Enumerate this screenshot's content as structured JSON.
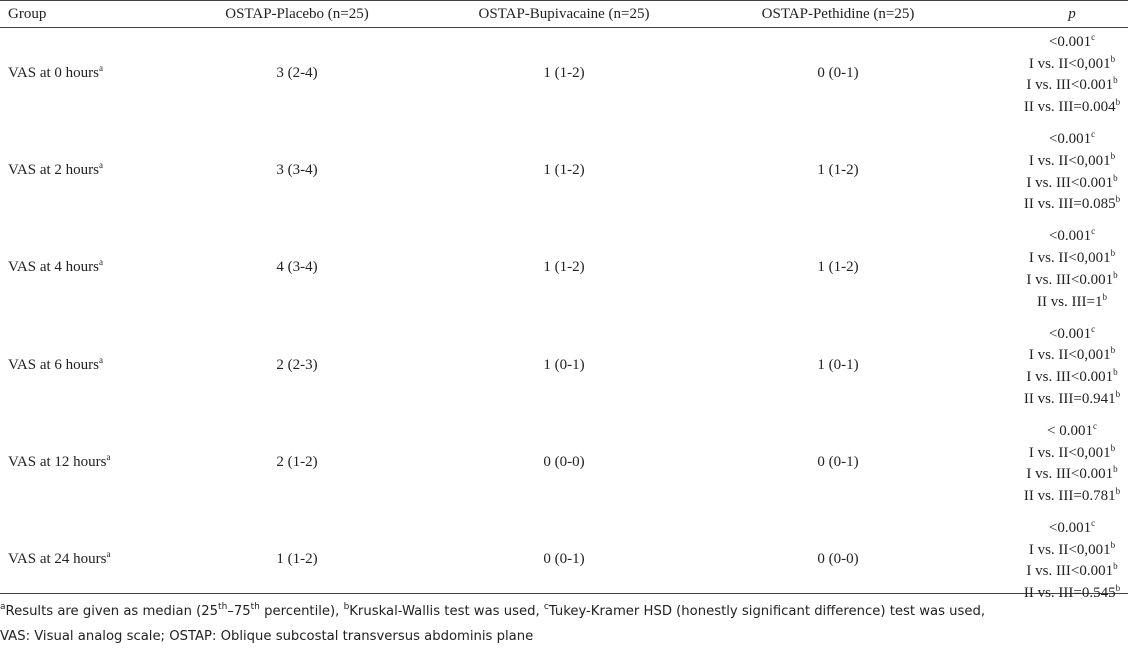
{
  "table": {
    "header": [
      "Group",
      "OSTAP-Placebo (n=25)",
      "OSTAP-Bupivacaine (n=25)",
      "OSTAP-Pethidine (n=25)",
      "p"
    ],
    "rows": [
      {
        "label": [
          {
            "text": "VAS at 0 hours"
          },
          {
            "text": "a",
            "sup": true
          }
        ],
        "values": [
          "3 (2-4)",
          "1 (1-2)",
          "0 (0-1)"
        ],
        "p": [
          [
            {
              "text": "<0.001"
            },
            {
              "text": "c",
              "sup": true
            }
          ],
          [
            {
              "text": "I vs. II<0,001"
            },
            {
              "text": "b",
              "sup": true
            }
          ],
          [
            {
              "text": "I vs. III<0.001"
            },
            {
              "text": "b",
              "sup": true
            }
          ],
          [
            {
              "text": "II vs. III=0.004"
            },
            {
              "text": "b",
              "sup": true
            }
          ]
        ]
      },
      {
        "label": [
          {
            "text": "VAS at 2 hours"
          },
          {
            "text": "a",
            "sup": true
          }
        ],
        "values": [
          "3 (3-4)",
          "1 (1-2)",
          "1 (1-2)"
        ],
        "p": [
          [
            {
              "text": "<0.001"
            },
            {
              "text": "c",
              "sup": true
            }
          ],
          [
            {
              "text": "I vs. II<0,001"
            },
            {
              "text": "b",
              "sup": true
            }
          ],
          [
            {
              "text": "I vs. III<0.001"
            },
            {
              "text": "b",
              "sup": true
            }
          ],
          [
            {
              "text": "II vs. III=0.085"
            },
            {
              "text": "b",
              "sup": true
            }
          ]
        ]
      },
      {
        "label": [
          {
            "text": "VAS at 4 hours"
          },
          {
            "text": "a",
            "sup": true
          }
        ],
        "values": [
          "4 (3-4)",
          "1 (1-2)",
          "1 (1-2)"
        ],
        "p": [
          [
            {
              "text": "<0.001"
            },
            {
              "text": "c",
              "sup": true
            }
          ],
          [
            {
              "text": "I vs. II<0,001"
            },
            {
              "text": "b",
              "sup": true
            }
          ],
          [
            {
              "text": "I vs. III<0.001"
            },
            {
              "text": "b",
              "sup": true
            }
          ],
          [
            {
              "text": "II vs. III=1"
            },
            {
              "text": "b",
              "sup": true
            }
          ]
        ]
      },
      {
        "label": [
          {
            "text": "VAS at 6 hours"
          },
          {
            "text": "a",
            "sup": true
          }
        ],
        "values": [
          "2 (2-3)",
          "1 (0-1)",
          "1 (0-1)"
        ],
        "p": [
          [
            {
              "text": "<0.001"
            },
            {
              "text": "c",
              "sup": true
            }
          ],
          [
            {
              "text": "I vs. II<0,001"
            },
            {
              "text": "b",
              "sup": true
            }
          ],
          [
            {
              "text": "I vs. III<0.001"
            },
            {
              "text": "b",
              "sup": true
            }
          ],
          [
            {
              "text": "II vs. III=0.941"
            },
            {
              "text": "b",
              "sup": true
            }
          ]
        ]
      },
      {
        "label": [
          {
            "text": "VAS at 12 hours"
          },
          {
            "text": "a",
            "sup": true
          }
        ],
        "values": [
          "2 (1-2)",
          "0 (0-0)",
          "0 (0-1)"
        ],
        "p": [
          [
            {
              "text": "< 0.001"
            },
            {
              "text": "c",
              "sup": true
            }
          ],
          [
            {
              "text": "I vs. II<0,001"
            },
            {
              "text": "b",
              "sup": true
            }
          ],
          [
            {
              "text": "I vs. III<0.001"
            },
            {
              "text": "b",
              "sup": true
            }
          ],
          [
            {
              "text": "II vs. III=0.781"
            },
            {
              "text": "b",
              "sup": true
            }
          ]
        ]
      },
      {
        "label": [
          {
            "text": "VAS at 24 hours"
          },
          {
            "text": "a",
            "sup": true
          }
        ],
        "values": [
          "1 (1-2)",
          "0 (0-1)",
          "0 (0-0)"
        ],
        "p": [
          [
            {
              "text": "<0.001"
            },
            {
              "text": "c",
              "sup": true
            }
          ],
          [
            {
              "text": "I vs. II<0,001"
            },
            {
              "text": "b",
              "sup": true
            }
          ],
          [
            {
              "text": "I vs. III<0.001"
            },
            {
              "text": "b",
              "sup": true
            }
          ],
          [
            {
              "text": "II vs. III=0.545"
            },
            {
              "text": "b",
              "sup": true
            }
          ]
        ]
      }
    ],
    "footnote": [
      [
        {
          "text": "a",
          "sup": true
        },
        {
          "text": "Results are given as median (25"
        },
        {
          "text": "th",
          "sup": true
        },
        {
          "text": "–75"
        },
        {
          "text": "th",
          "sup": true
        },
        {
          "text": " percentile), "
        },
        {
          "text": "b",
          "sup": true
        },
        {
          "text": "Kruskal-Wallis test was used, "
        },
        {
          "text": "c",
          "sup": true
        },
        {
          "text": "Tukey-Kramer HSD (honestly significant difference) test was used,"
        }
      ],
      [
        {
          "text": "VAS: Visual analog scale; OSTAP: Oblique subcostal transversus abdominis plane"
        }
      ]
    ]
  }
}
